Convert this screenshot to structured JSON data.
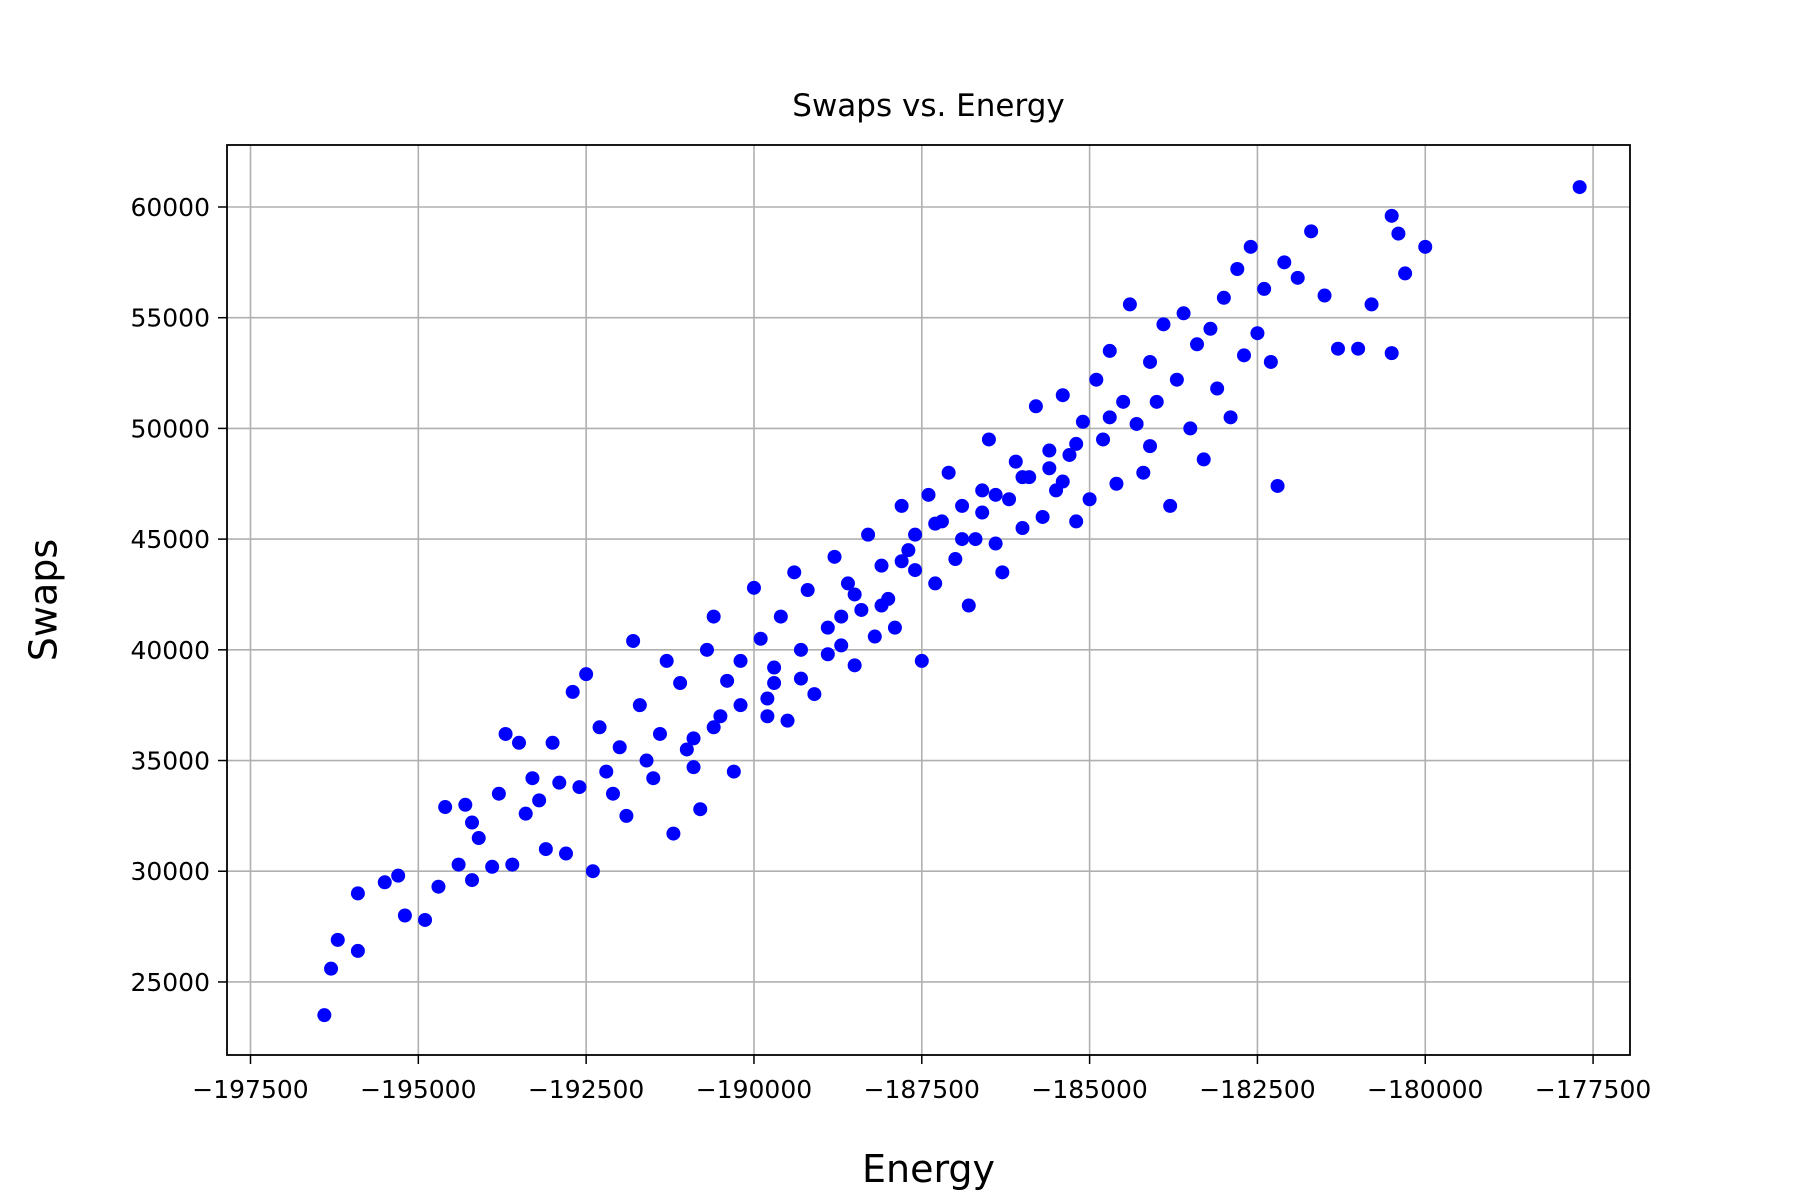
{
  "chart_data": {
    "type": "scatter",
    "title": "Swaps vs. Energy",
    "xlabel": "Energy",
    "ylabel": "Swaps",
    "xlim": [
      -197850,
      -176950
    ],
    "ylim": [
      21700,
      62800
    ],
    "grid": true,
    "legend": "none",
    "marker_color": "#0000ff",
    "xticks": [
      -197500,
      -195000,
      -192500,
      -190000,
      -187500,
      -185000,
      -182500,
      -180000,
      -177500
    ],
    "xtick_labels": [
      "−197500",
      "−195000",
      "−192500",
      "−190000",
      "−187500",
      "−185000",
      "−182500",
      "−180000",
      "−177500"
    ],
    "yticks": [
      25000,
      30000,
      35000,
      40000,
      45000,
      50000,
      55000,
      60000
    ],
    "ytick_labels": [
      "25000",
      "30000",
      "35000",
      "40000",
      "45000",
      "50000",
      "55000",
      "60000"
    ],
    "series": [
      {
        "points": [
          [
            -196400,
            23500
          ],
          [
            -196300,
            25600
          ],
          [
            -196200,
            26900
          ],
          [
            -195900,
            26400
          ],
          [
            -195900,
            29000
          ],
          [
            -195500,
            29500
          ],
          [
            -195300,
            29800
          ],
          [
            -195200,
            28000
          ],
          [
            -194900,
            27800
          ],
          [
            -194700,
            29300
          ],
          [
            -194600,
            32900
          ],
          [
            -194400,
            30300
          ],
          [
            -194300,
            33000
          ],
          [
            -194200,
            29600
          ],
          [
            -194100,
            31500
          ],
          [
            -193900,
            30200
          ],
          [
            -193700,
            36200
          ],
          [
            -193600,
            30300
          ],
          [
            -193500,
            35800
          ],
          [
            -193300,
            34200
          ],
          [
            -193100,
            31000
          ],
          [
            -193000,
            35800
          ],
          [
            -192800,
            30800
          ],
          [
            -192700,
            38100
          ],
          [
            -192500,
            38900
          ],
          [
            -192400,
            30000
          ],
          [
            -192300,
            36500
          ],
          [
            -192200,
            34500
          ],
          [
            -192000,
            35600
          ],
          [
            -191900,
            32500
          ],
          [
            -191800,
            40400
          ],
          [
            -191700,
            37500
          ],
          [
            -191600,
            35000
          ],
          [
            -191400,
            36200
          ],
          [
            -191300,
            39500
          ],
          [
            -191200,
            31700
          ],
          [
            -191100,
            38500
          ],
          [
            -190900,
            36000
          ],
          [
            -190800,
            32800
          ],
          [
            -190700,
            40000
          ],
          [
            -190600,
            41500
          ],
          [
            -190500,
            37000
          ],
          [
            -190400,
            38600
          ],
          [
            -190300,
            34500
          ],
          [
            -190200,
            39500
          ],
          [
            -190000,
            42800
          ],
          [
            -189900,
            40500
          ],
          [
            -189800,
            37000
          ],
          [
            -189700,
            38500
          ],
          [
            -189600,
            41500
          ],
          [
            -189500,
            36800
          ],
          [
            -189400,
            43500
          ],
          [
            -189300,
            40000
          ],
          [
            -189200,
            42700
          ],
          [
            -189100,
            38000
          ],
          [
            -188900,
            39800
          ],
          [
            -188800,
            44200
          ],
          [
            -188700,
            41500
          ],
          [
            -188600,
            43000
          ],
          [
            -188500,
            39300
          ],
          [
            -188400,
            41800
          ],
          [
            -188300,
            45200
          ],
          [
            -188200,
            40600
          ],
          [
            -188100,
            43800
          ],
          [
            -188000,
            42300
          ],
          [
            -187900,
            41000
          ],
          [
            -187800,
            46500
          ],
          [
            -187700,
            44500
          ],
          [
            -187600,
            45200
          ],
          [
            -187500,
            39500
          ],
          [
            -187400,
            47000
          ],
          [
            -187300,
            43000
          ],
          [
            -187200,
            45800
          ],
          [
            -187100,
            48000
          ],
          [
            -187000,
            44100
          ],
          [
            -186900,
            46500
          ],
          [
            -186800,
            42000
          ],
          [
            -186700,
            45000
          ],
          [
            -186600,
            47200
          ],
          [
            -186500,
            49500
          ],
          [
            -186400,
            44800
          ],
          [
            -186300,
            43500
          ],
          [
            -186200,
            46800
          ],
          [
            -186100,
            48500
          ],
          [
            -186000,
            45500
          ],
          [
            -185900,
            47800
          ],
          [
            -185800,
            51000
          ],
          [
            -185700,
            46000
          ],
          [
            -185600,
            49000
          ],
          [
            -185500,
            47200
          ],
          [
            -185400,
            51500
          ],
          [
            -185300,
            48800
          ],
          [
            -185200,
            45800
          ],
          [
            -185100,
            50300
          ],
          [
            -185000,
            46800
          ],
          [
            -184900,
            52200
          ],
          [
            -184800,
            49500
          ],
          [
            -184700,
            53500
          ],
          [
            -184600,
            47500
          ],
          [
            -184500,
            51200
          ],
          [
            -184400,
            55600
          ],
          [
            -184300,
            50200
          ],
          [
            -184200,
            48000
          ],
          [
            -184100,
            53000
          ],
          [
            -184000,
            51200
          ],
          [
            -183900,
            54700
          ],
          [
            -183800,
            46500
          ],
          [
            -183700,
            52200
          ],
          [
            -183600,
            55200
          ],
          [
            -183500,
            50000
          ],
          [
            -183400,
            53800
          ],
          [
            -183300,
            48600
          ],
          [
            -183200,
            54500
          ],
          [
            -183100,
            51800
          ],
          [
            -183000,
            55900
          ],
          [
            -182900,
            50500
          ],
          [
            -182800,
            57200
          ],
          [
            -182700,
            53300
          ],
          [
            -182600,
            58200
          ],
          [
            -182500,
            54300
          ],
          [
            -182400,
            56300
          ],
          [
            -182300,
            53000
          ],
          [
            -182200,
            47400
          ],
          [
            -182100,
            57500
          ],
          [
            -181900,
            56800
          ],
          [
            -181700,
            58900
          ],
          [
            -181500,
            56000
          ],
          [
            -181300,
            53600
          ],
          [
            -181000,
            53600
          ],
          [
            -180800,
            55600
          ],
          [
            -180500,
            59600
          ],
          [
            -180400,
            58800
          ],
          [
            -180300,
            57000
          ],
          [
            -180000,
            58200
          ],
          [
            -180500,
            53400
          ],
          [
            -177700,
            60900
          ],
          [
            -193800,
            33500
          ],
          [
            -193200,
            33200
          ],
          [
            -192900,
            34000
          ],
          [
            -192600,
            33800
          ],
          [
            -191500,
            34200
          ],
          [
            -191000,
            35500
          ],
          [
            -190600,
            36500
          ],
          [
            -190200,
            37500
          ],
          [
            -189700,
            39200
          ],
          [
            -189300,
            38700
          ],
          [
            -188900,
            41000
          ],
          [
            -188500,
            42500
          ],
          [
            -188100,
            42000
          ],
          [
            -187800,
            44000
          ],
          [
            -187300,
            45700
          ],
          [
            -186900,
            45000
          ],
          [
            -186400,
            47000
          ],
          [
            -186000,
            47800
          ],
          [
            -185600,
            48200
          ],
          [
            -185200,
            49300
          ],
          [
            -184700,
            50500
          ],
          [
            -194200,
            32200
          ],
          [
            -193400,
            32600
          ],
          [
            -192100,
            33500
          ],
          [
            -190900,
            34700
          ],
          [
            -189800,
            37800
          ],
          [
            -188700,
            40200
          ],
          [
            -187600,
            43600
          ],
          [
            -186600,
            46200
          ],
          [
            -185400,
            47600
          ],
          [
            -184100,
            49200
          ]
        ]
      }
    ]
  }
}
